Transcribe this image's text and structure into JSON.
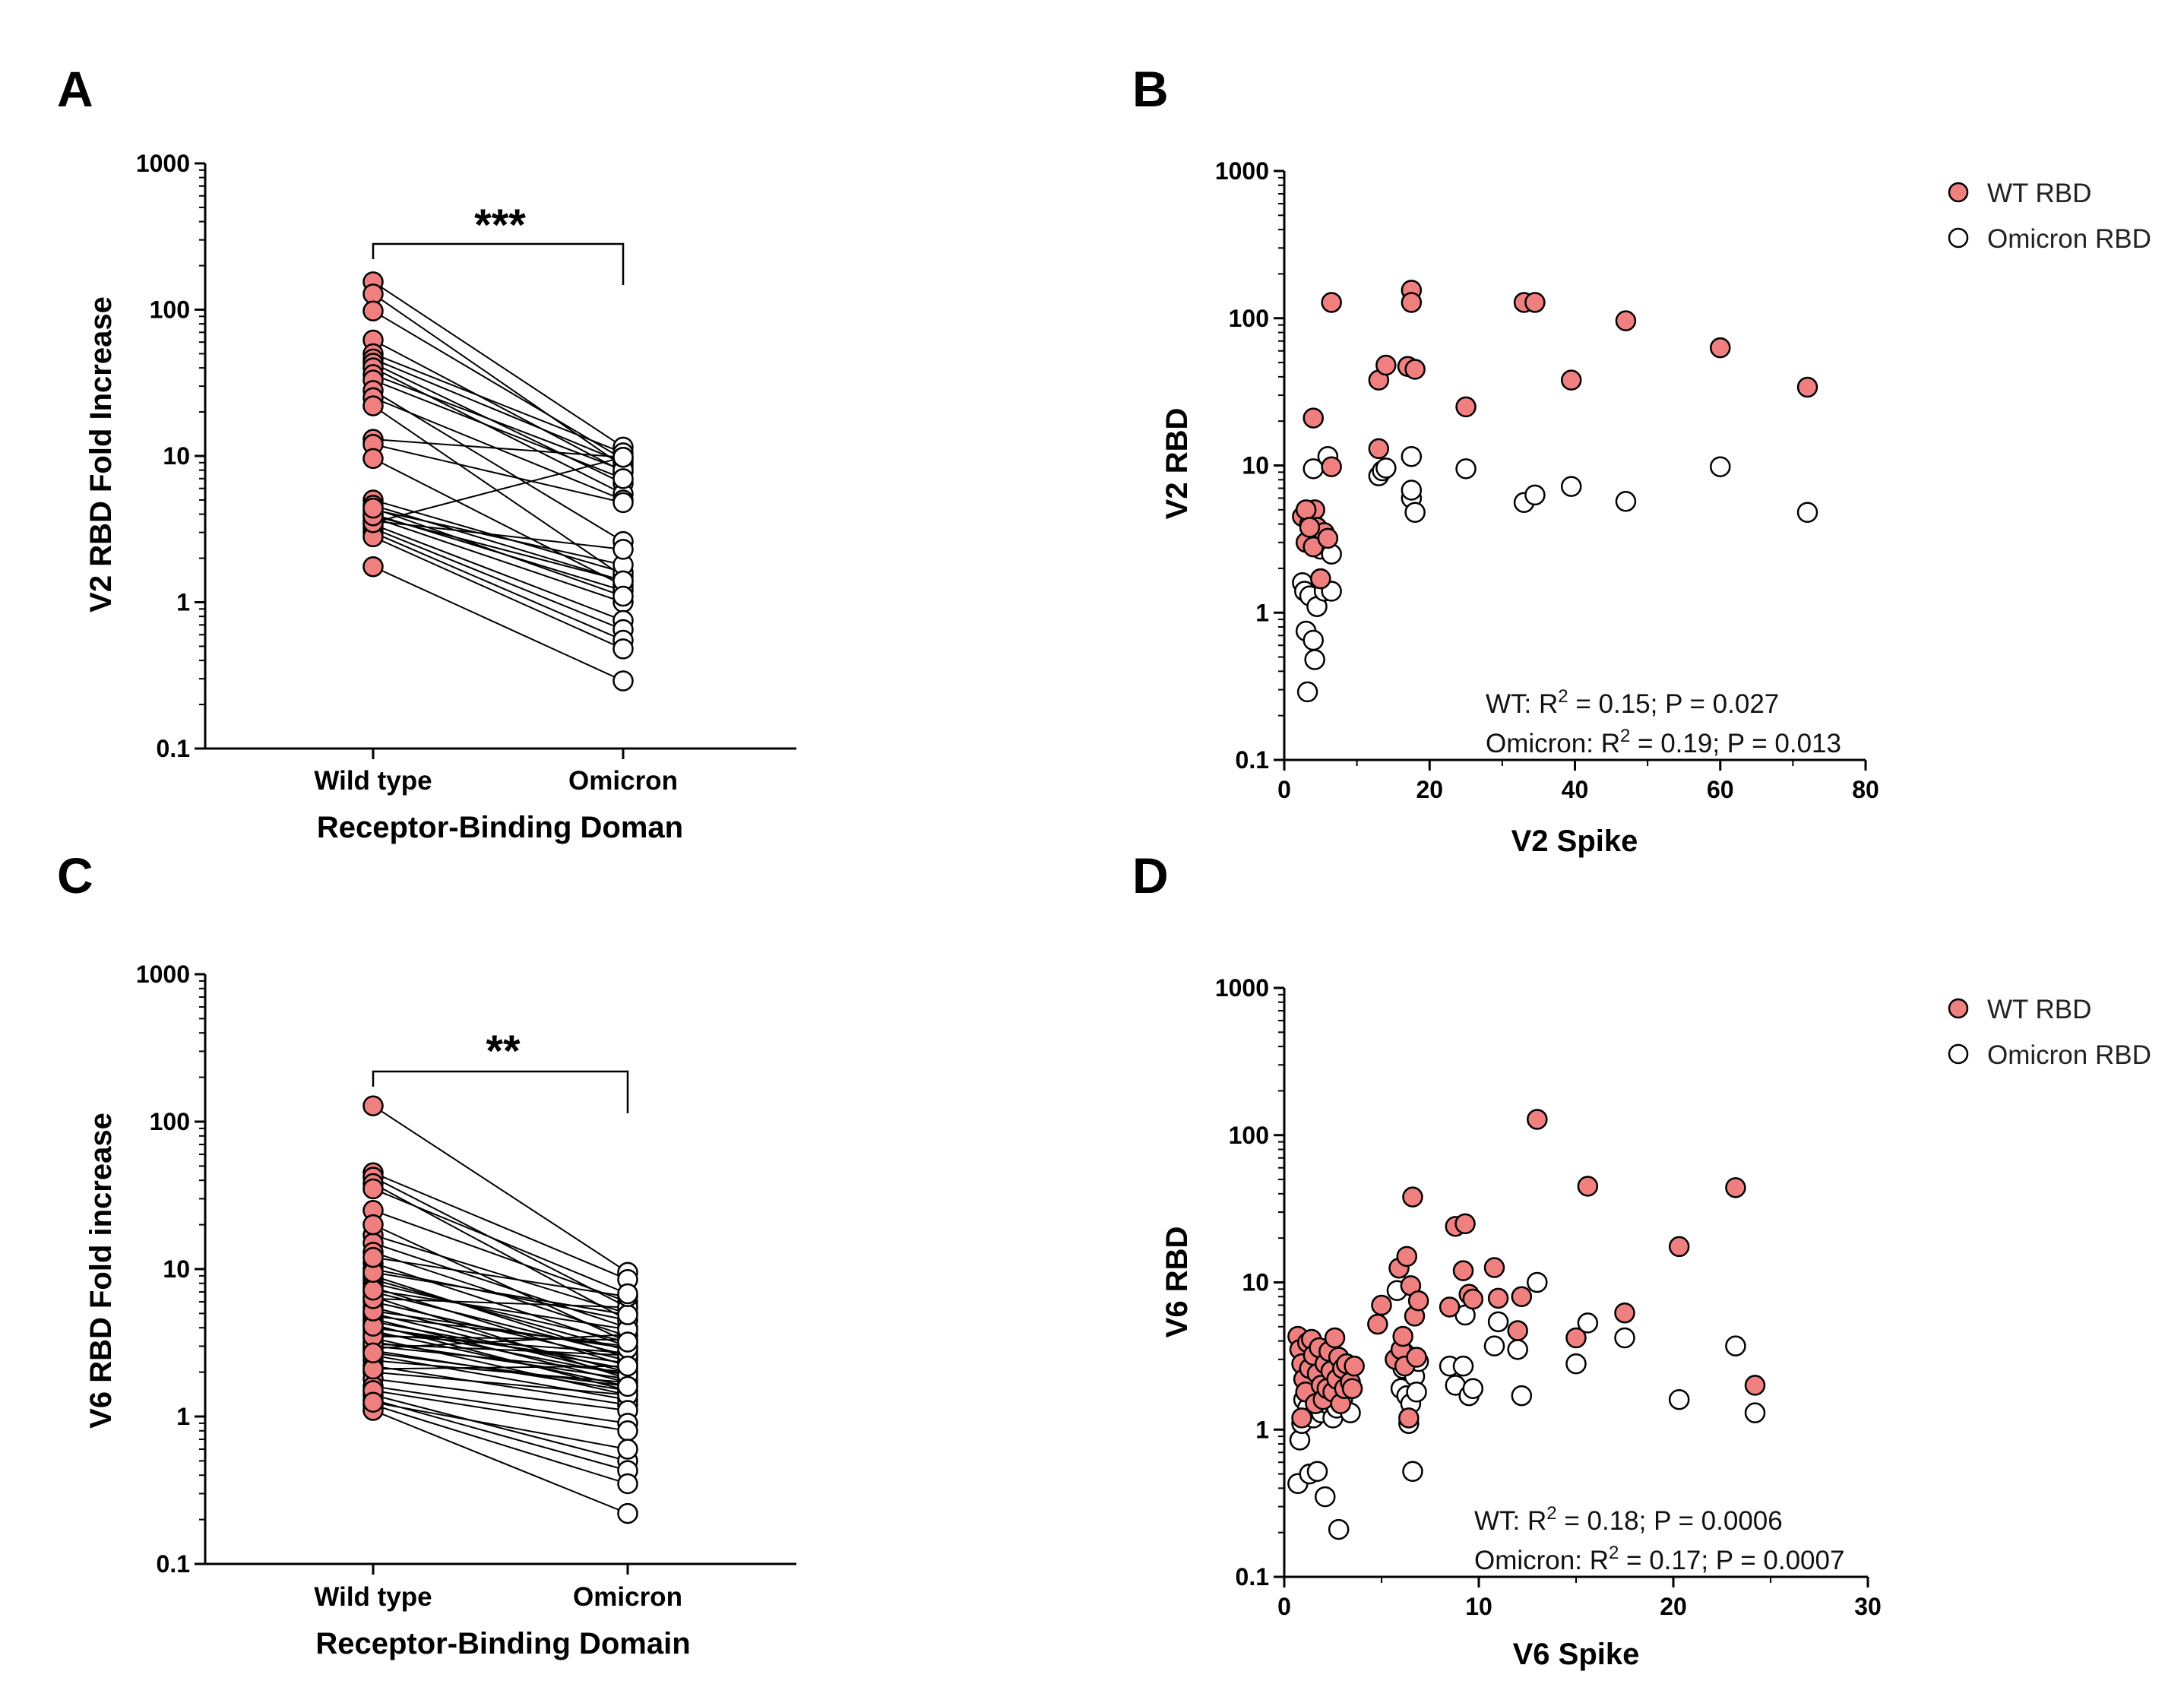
{
  "colors": {
    "wt": "#f07f7f",
    "omicron": "#ffffff",
    "stroke": "#000000"
  },
  "chart_data": [
    {
      "id": "A",
      "panel_label": "A",
      "type": "paired-dot",
      "ylabel": "V2 RBD Fold Increase",
      "xlabel": "Receptor-Binding Doman",
      "categories": [
        "Wild type",
        "Omicron"
      ],
      "yscale": "log",
      "ylim": [
        0.1,
        1000
      ],
      "yticks": [
        "0.1",
        "1",
        "10",
        "100",
        "1000"
      ],
      "significance": "***",
      "pairs": [
        [
          155,
          11.5
        ],
        [
          128,
          8.5
        ],
        [
          98,
          9.5
        ],
        [
          62,
          7.8
        ],
        [
          50,
          10.5
        ],
        [
          46,
          9
        ],
        [
          43,
          6.5
        ],
        [
          40,
          5.5
        ],
        [
          36,
          8
        ],
        [
          33,
          7
        ],
        [
          28,
          2.6
        ],
        [
          25,
          5
        ],
        [
          22,
          1.5
        ],
        [
          13,
          9.8
        ],
        [
          12,
          4.8
        ],
        [
          9.6,
          1.3
        ],
        [
          5,
          1.6
        ],
        [
          4.6,
          1.4
        ],
        [
          4.3,
          1.8
        ],
        [
          4,
          1.2
        ],
        [
          3.8,
          1
        ],
        [
          3.6,
          2.3
        ],
        [
          3.4,
          0.75
        ],
        [
          3.2,
          0.65
        ],
        [
          3,
          0.55
        ],
        [
          2.8,
          0.48
        ],
        [
          1.75,
          0.29
        ],
        [
          3.5,
          9.8
        ],
        [
          3.9,
          1.4
        ],
        [
          4.4,
          1.1
        ]
      ]
    },
    {
      "id": "B",
      "panel_label": "B",
      "type": "scatter",
      "xlabel": "V2 Spike",
      "ylabel": "V2 RBD",
      "xlim": [
        0,
        80
      ],
      "xticks": [
        "0",
        "20",
        "40",
        "60",
        "80"
      ],
      "yscale": "log",
      "ylim": [
        0.1,
        1000
      ],
      "yticks": [
        "0.1",
        "1",
        "10",
        "100",
        "1000"
      ],
      "legend": [
        "WT RBD",
        "Omicron RBD"
      ],
      "annotations": {
        "wt": {
          "prefix": "WT: R",
          "sup": "2",
          "suffix": " = 0.15; P = 0.027"
        },
        "omicron": {
          "prefix": "Omicron: R",
          "sup": "2",
          "suffix": " = 0.19; P = 0.013"
        }
      },
      "series": [
        {
          "name": "WT RBD",
          "points": [
            [
              2.5,
              4.5
            ],
            [
              3,
              3
            ],
            [
              3.5,
              4
            ],
            [
              4,
              21
            ],
            [
              4.2,
              5
            ],
            [
              4.5,
              3.8
            ],
            [
              5,
              1.7
            ],
            [
              5.5,
              3.5
            ],
            [
              4,
              2.8
            ],
            [
              3,
              5
            ],
            [
              6,
              3.2
            ],
            [
              3.5,
              3.8
            ],
            [
              6.5,
              9.8
            ],
            [
              6.5,
              128
            ],
            [
              13,
              38
            ],
            [
              13,
              13
            ],
            [
              14,
              48
            ],
            [
              17,
              47
            ],
            [
              17.5,
              155
            ],
            [
              17.5,
              128
            ],
            [
              18,
              45
            ],
            [
              25,
              25
            ],
            [
              33,
              128
            ],
            [
              34.5,
              128
            ],
            [
              39.5,
              38
            ],
            [
              47,
              96
            ],
            [
              60,
              63
            ],
            [
              72,
              34
            ]
          ]
        },
        {
          "name": "Omicron RBD",
          "points": [
            [
              2.5,
              1.6
            ],
            [
              2.8,
              1.4
            ],
            [
              3,
              0.75
            ],
            [
              3.2,
              0.29
            ],
            [
              3.5,
              1.3
            ],
            [
              4,
              9.5
            ],
            [
              4,
              0.65
            ],
            [
              4.2,
              0.48
            ],
            [
              4.5,
              1.1
            ],
            [
              5,
              1.7
            ],
            [
              5,
              2.7
            ],
            [
              5.5,
              1.4
            ],
            [
              5.5,
              3.3
            ],
            [
              6,
              11.5
            ],
            [
              6.5,
              2.5
            ],
            [
              6.5,
              1.4
            ],
            [
              13,
              8.5
            ],
            [
              13.5,
              9.2
            ],
            [
              14,
              9.6
            ],
            [
              17.5,
              6
            ],
            [
              17.5,
              6.8
            ],
            [
              17.5,
              11.5
            ],
            [
              18,
              4.8
            ],
            [
              25,
              9.5
            ],
            [
              33,
              5.6
            ],
            [
              34.5,
              6.3
            ],
            [
              39.5,
              7.2
            ],
            [
              47,
              5.7
            ],
            [
              60,
              9.8
            ],
            [
              72,
              4.8
            ]
          ]
        }
      ]
    },
    {
      "id": "C",
      "panel_label": "C",
      "type": "paired-dot",
      "ylabel": "V6 RBD Fold increase",
      "xlabel": "Receptor-Binding Domain",
      "categories": [
        "Wild type",
        "Omicron"
      ],
      "yscale": "log",
      "ylim": [
        0.1,
        1000
      ],
      "yticks": [
        "0.1",
        "1",
        "10",
        "100",
        "1000"
      ],
      "significance": "**",
      "pairs": [
        [
          128,
          9.5
        ],
        [
          45,
          8.5
        ],
        [
          42,
          5.5
        ],
        [
          38,
          4.5
        ],
        [
          25,
          6
        ],
        [
          17,
          5
        ],
        [
          15,
          4
        ],
        [
          13,
          3.5
        ],
        [
          11,
          3
        ],
        [
          10,
          4.5
        ],
        [
          9,
          2.5
        ],
        [
          8.5,
          2.8
        ],
        [
          8,
          3.2
        ],
        [
          7.5,
          2.2
        ],
        [
          7,
          2.6
        ],
        [
          6.5,
          1.8
        ],
        [
          6,
          2.4
        ],
        [
          5.5,
          2
        ],
        [
          5,
          1.9
        ],
        [
          4.8,
          3
        ],
        [
          4.6,
          1.7
        ],
        [
          4.4,
          2.1
        ],
        [
          4.2,
          1.5
        ],
        [
          4,
          2.3
        ],
        [
          3.8,
          1.6
        ],
        [
          3.6,
          2.7
        ],
        [
          3.4,
          1.4
        ],
        [
          3.2,
          1.8
        ],
        [
          3,
          2
        ],
        [
          2.8,
          1.5
        ],
        [
          2.6,
          1.3
        ],
        [
          2.4,
          1.7
        ],
        [
          2.2,
          1.2
        ],
        [
          2,
          1.4
        ],
        [
          1.8,
          1.1
        ],
        [
          1.6,
          0.9
        ],
        [
          1.4,
          0.5
        ],
        [
          1.3,
          0.43
        ],
        [
          1.2,
          0.35
        ],
        [
          1.1,
          0.22
        ],
        [
          2.9,
          3.6
        ],
        [
          3.1,
          2.6
        ],
        [
          3.5,
          3.3
        ],
        [
          4.1,
          1.9
        ],
        [
          5.2,
          2.9
        ],
        [
          6.3,
          5.5
        ],
        [
          7.2,
          3.9
        ],
        [
          9.5,
          4.9
        ],
        [
          12,
          6.5
        ],
        [
          20,
          3.2
        ],
        [
          35,
          6.8
        ],
        [
          1.5,
          0.8
        ],
        [
          1.25,
          0.6
        ],
        [
          2.1,
          2.2
        ],
        [
          2.7,
          1.6
        ]
      ]
    },
    {
      "id": "D",
      "panel_label": "D",
      "type": "scatter",
      "xlabel": "V6 Spike",
      "ylabel": "V6 RBD",
      "xlim": [
        0,
        30
      ],
      "xticks": [
        "0",
        "10",
        "20",
        "30"
      ],
      "yscale": "log",
      "ylim": [
        0.1,
        1000
      ],
      "yticks": [
        "0.1",
        "1",
        "10",
        "100",
        "1000"
      ],
      "legend": [
        "WT RBD",
        "Omicron RBD"
      ],
      "annotations": {
        "wt": {
          "prefix": "WT: R",
          "sup": "2",
          "suffix": " = 0.18; P = 0.0006"
        },
        "omicron": {
          "prefix": "Omicron: R",
          "sup": "2",
          "suffix": " = 0.17; P = 0.0007"
        }
      },
      "series": [
        {
          "name": "WT RBD",
          "points": [
            [
              0.7,
              4.3
            ],
            [
              0.8,
              3.5
            ],
            [
              0.9,
              2.8
            ],
            [
              0.9,
              1.2
            ],
            [
              1,
              2.2
            ],
            [
              1.1,
              1.8
            ],
            [
              1.2,
              3.9
            ],
            [
              1.3,
              2.6
            ],
            [
              1.4,
              4.1
            ],
            [
              1.5,
              3.2
            ],
            [
              1.6,
              1.5
            ],
            [
              1.7,
              2.4
            ],
            [
              1.8,
              3.6
            ],
            [
              1.9,
              2
            ],
            [
              2,
              1.6
            ],
            [
              2.1,
              2.8
            ],
            [
              2.2,
              1.9
            ],
            [
              2.3,
              3.4
            ],
            [
              2.4,
              2.5
            ],
            [
              2.5,
              1.8
            ],
            [
              2.6,
              4.2
            ],
            [
              2.7,
              2.2
            ],
            [
              2.8,
              3.1
            ],
            [
              2.9,
              1.5
            ],
            [
              3,
              2.6
            ],
            [
              3.1,
              1.9
            ],
            [
              3.2,
              2.8
            ],
            [
              3.4,
              2.1
            ],
            [
              3.5,
              1.9
            ],
            [
              3.6,
              2.7
            ],
            [
              4.8,
              5.2
            ],
            [
              5,
              7
            ],
            [
              5.7,
              3
            ],
            [
              5.9,
              12.5
            ],
            [
              6,
              3.5
            ],
            [
              6.1,
              4.3
            ],
            [
              6.2,
              2.7
            ],
            [
              6.3,
              15
            ],
            [
              6.4,
              1.2
            ],
            [
              6.5,
              9.5
            ],
            [
              6.6,
              38
            ],
            [
              6.7,
              5.9
            ],
            [
              6.8,
              3.1
            ],
            [
              6.9,
              7.5
            ],
            [
              8.5,
              6.8
            ],
            [
              8.8,
              24
            ],
            [
              9.2,
              12
            ],
            [
              9.3,
              25
            ],
            [
              9.5,
              8.3
            ],
            [
              9.7,
              7.7
            ],
            [
              10.8,
              12.6
            ],
            [
              11,
              7.8
            ],
            [
              12,
              4.7
            ],
            [
              12.2,
              8
            ],
            [
              13,
              128
            ],
            [
              15,
              4.2
            ],
            [
              15.6,
              45
            ],
            [
              17.5,
              6.2
            ],
            [
              20.3,
              17.5
            ],
            [
              23.2,
              44
            ],
            [
              24.2,
              2
            ]
          ]
        },
        {
          "name": "Omicron RBD",
          "points": [
            [
              0.7,
              0.43
            ],
            [
              0.8,
              0.85
            ],
            [
              0.9,
              1.1
            ],
            [
              1,
              1.6
            ],
            [
              1.1,
              2.4
            ],
            [
              1.2,
              1.4
            ],
            [
              1.3,
              0.5
            ],
            [
              1.4,
              1.9
            ],
            [
              1.5,
              1.2
            ],
            [
              1.6,
              2.8
            ],
            [
              1.7,
              0.52
            ],
            [
              1.8,
              1.6
            ],
            [
              1.9,
              1.3
            ],
            [
              2,
              2.1
            ],
            [
              2.1,
              0.35
            ],
            [
              2.2,
              1.5
            ],
            [
              2.3,
              2.7
            ],
            [
              2.5,
              1.2
            ],
            [
              2.6,
              1.8
            ],
            [
              2.7,
              1.4
            ],
            [
              2.8,
              0.21
            ],
            [
              3,
              1.6
            ],
            [
              3.2,
              2
            ],
            [
              3.4,
              1.3
            ],
            [
              5.8,
              8.8
            ],
            [
              6,
              1.9
            ],
            [
              6.1,
              2.6
            ],
            [
              6.2,
              3.3
            ],
            [
              6.3,
              1.7
            ],
            [
              6.4,
              1.1
            ],
            [
              6.5,
              1.5
            ],
            [
              6.6,
              0.52
            ],
            [
              6.7,
              2.3
            ],
            [
              6.8,
              1.8
            ],
            [
              6.9,
              2.9
            ],
            [
              8.5,
              2.7
            ],
            [
              8.8,
              2
            ],
            [
              9.2,
              2.7
            ],
            [
              9.3,
              6
            ],
            [
              9.5,
              1.7
            ],
            [
              9.7,
              1.9
            ],
            [
              10.8,
              3.7
            ],
            [
              11,
              5.4
            ],
            [
              12,
              3.5
            ],
            [
              12.2,
              1.7
            ],
            [
              13,
              10
            ],
            [
              15,
              2.8
            ],
            [
              15.6,
              5.3
            ],
            [
              17.5,
              4.2
            ],
            [
              20.3,
              1.6
            ],
            [
              23.2,
              3.7
            ],
            [
              24.2,
              1.3
            ]
          ]
        }
      ]
    }
  ]
}
